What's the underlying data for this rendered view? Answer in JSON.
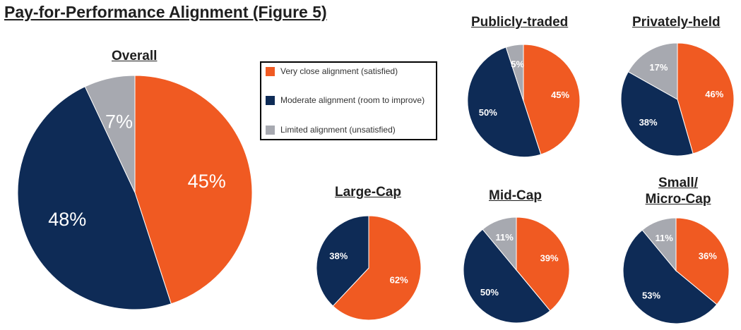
{
  "title": "Pay-for-Performance Alignment (Figure 5)",
  "legend": [
    {
      "label": "Very close alignment (satisfied)",
      "color": "#F05A22"
    },
    {
      "label": "Moderate alignment (room to improve)",
      "color": "#0E2B56"
    },
    {
      "label": "Limited alignment (unsatisfied)",
      "color": "#A7A9B0"
    }
  ],
  "chart_data": [
    {
      "type": "pie",
      "title": "Overall",
      "categories": [
        "Very close alignment (satisfied)",
        "Moderate alignment (room to improve)",
        "Limited alignment (unsatisfied)"
      ],
      "values": [
        45,
        48,
        7
      ],
      "labels": [
        "45%",
        "48%",
        "7%"
      ]
    },
    {
      "type": "pie",
      "title": "Publicly-traded",
      "categories": [
        "Very close alignment (satisfied)",
        "Moderate alignment (room to improve)",
        "Limited alignment (unsatisfied)"
      ],
      "values": [
        45,
        50,
        5
      ],
      "labels": [
        "45%",
        "50%",
        "5%"
      ]
    },
    {
      "type": "pie",
      "title": "Privately-held",
      "categories": [
        "Very close alignment (satisfied)",
        "Moderate alignment (room to improve)",
        "Limited alignment (unsatisfied)"
      ],
      "values": [
        46,
        38,
        17
      ],
      "labels": [
        "46%",
        "38%",
        "17%"
      ]
    },
    {
      "type": "pie",
      "title": "Large-Cap",
      "categories": [
        "Very close alignment (satisfied)",
        "Moderate alignment (room to improve)"
      ],
      "values": [
        62,
        38
      ],
      "labels": [
        "62%",
        "38%"
      ]
    },
    {
      "type": "pie",
      "title": "Mid-Cap",
      "categories": [
        "Very close alignment (satisfied)",
        "Moderate alignment (room to improve)",
        "Limited alignment (unsatisfied)"
      ],
      "values": [
        39,
        50,
        11
      ],
      "labels": [
        "39%",
        "50%",
        "11%"
      ]
    },
    {
      "type": "pie",
      "title_lines": [
        "Small/",
        "Micro-Cap"
      ],
      "categories": [
        "Very close alignment (satisfied)",
        "Moderate alignment (room to improve)",
        "Limited alignment (unsatisfied)"
      ],
      "values": [
        36,
        53,
        11
      ],
      "labels": [
        "36%",
        "53%",
        "11%"
      ]
    }
  ]
}
